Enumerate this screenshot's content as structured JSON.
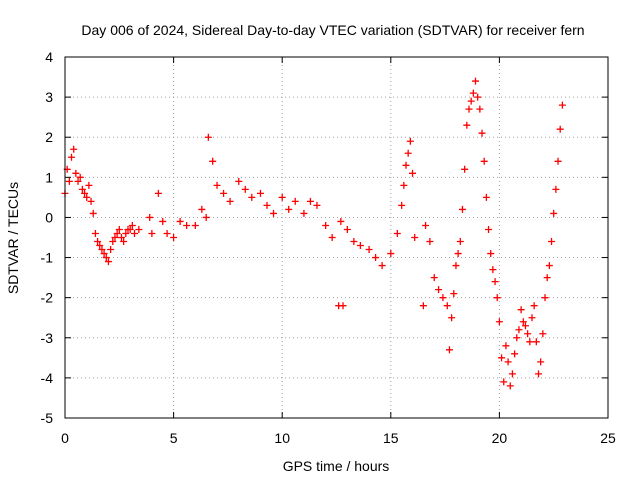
{
  "chart_data": {
    "type": "scatter",
    "title": "Day 006 of 2024, Sidereal Day-to-day VTEC variation (SDTVAR) for receiver fern",
    "xlabel": "GPS time / hours",
    "ylabel": "SDTVAR / TECUs",
    "xlim": [
      0,
      25
    ],
    "ylim": [
      -5,
      4
    ],
    "xticks": [
      0,
      5,
      10,
      15,
      20,
      25
    ],
    "yticks": [
      4,
      3,
      2,
      1,
      0,
      -1,
      -2,
      -3,
      -4,
      -5
    ],
    "grid": true,
    "marker": "+",
    "color": "#ff0000",
    "series": [
      {
        "name": "SDTVAR",
        "x": [
          0.0,
          0.1,
          0.2,
          0.3,
          0.4,
          0.5,
          0.6,
          0.7,
          0.8,
          0.9,
          1.0,
          1.1,
          1.2,
          1.3,
          1.4,
          1.5,
          1.6,
          1.7,
          1.8,
          1.9,
          2.0,
          2.1,
          2.2,
          2.3,
          2.4,
          2.5,
          2.6,
          2.7,
          2.8,
          2.9,
          3.0,
          3.1,
          3.2,
          3.4,
          3.9,
          4.0,
          4.3,
          4.5,
          4.7,
          5.0,
          5.3,
          5.6,
          6.0,
          6.3,
          6.5,
          6.6,
          6.8,
          7.0,
          7.3,
          7.6,
          8.0,
          8.3,
          8.6,
          9.0,
          9.3,
          9.6,
          10.0,
          10.3,
          10.6,
          11.0,
          11.3,
          11.6,
          12.0,
          12.3,
          12.6,
          12.8,
          12.7,
          13.0,
          13.3,
          13.6,
          14.0,
          14.3,
          14.6,
          15.0,
          15.3,
          15.5,
          15.6,
          15.7,
          15.8,
          15.9,
          16.0,
          16.1,
          16.5,
          16.6,
          16.8,
          17.0,
          17.2,
          17.4,
          17.6,
          17.7,
          17.8,
          17.9,
          18.0,
          18.1,
          18.2,
          18.3,
          18.4,
          18.5,
          18.6,
          18.7,
          18.8,
          18.9,
          19.0,
          19.1,
          19.2,
          19.3,
          19.4,
          19.5,
          19.6,
          19.7,
          19.8,
          19.9,
          20.0,
          20.1,
          20.2,
          20.3,
          20.4,
          20.5,
          20.6,
          20.7,
          20.8,
          20.9,
          21.0,
          21.1,
          21.2,
          21.3,
          21.4,
          21.5,
          21.6,
          21.7,
          21.8,
          21.9,
          22.0,
          22.1,
          22.2,
          22.3,
          22.4,
          22.5,
          22.6,
          22.7,
          22.8,
          22.9
        ],
        "y": [
          0.6,
          1.2,
          0.9,
          1.5,
          1.7,
          1.1,
          0.9,
          1.0,
          0.7,
          0.6,
          0.5,
          0.8,
          0.4,
          0.1,
          -0.4,
          -0.6,
          -0.7,
          -0.8,
          -0.9,
          -1.0,
          -1.1,
          -0.8,
          -0.6,
          -0.5,
          -0.4,
          -0.3,
          -0.5,
          -0.6,
          -0.4,
          -0.3,
          -0.3,
          -0.2,
          -0.4,
          -0.3,
          0.0,
          -0.4,
          0.6,
          -0.1,
          -0.4,
          -0.5,
          -0.1,
          -0.2,
          -0.2,
          0.2,
          0.0,
          2.0,
          1.4,
          0.8,
          0.6,
          0.4,
          0.9,
          0.7,
          0.5,
          0.6,
          0.3,
          0.1,
          0.5,
          0.2,
          0.4,
          0.1,
          0.4,
          0.3,
          -0.2,
          -0.5,
          -2.2,
          -2.2,
          -0.1,
          -0.3,
          -0.6,
          -0.7,
          -0.8,
          -1.0,
          -1.2,
          -0.9,
          -0.4,
          0.3,
          0.8,
          1.3,
          1.6,
          1.9,
          1.1,
          -0.5,
          -2.2,
          -0.2,
          -0.6,
          -1.5,
          -1.8,
          -2.0,
          -2.2,
          -3.3,
          -2.5,
          -1.9,
          -1.2,
          -0.9,
          -0.6,
          0.2,
          1.2,
          2.3,
          2.7,
          2.9,
          3.1,
          3.4,
          3.0,
          2.7,
          2.1,
          1.4,
          0.5,
          -0.3,
          -0.9,
          -1.3,
          -1.6,
          -2.0,
          -2.6,
          -3.5,
          -4.1,
          -3.2,
          -3.6,
          -4.2,
          -3.9,
          -3.4,
          -3.0,
          -2.8,
          -2.3,
          -2.6,
          -2.7,
          -2.9,
          -3.1,
          -2.5,
          -2.2,
          -3.1,
          -3.9,
          -3.6,
          -2.9,
          -2.0,
          -1.5,
          -1.2,
          -0.6,
          0.1,
          0.7,
          1.4,
          2.2,
          2.8
        ]
      }
    ]
  }
}
